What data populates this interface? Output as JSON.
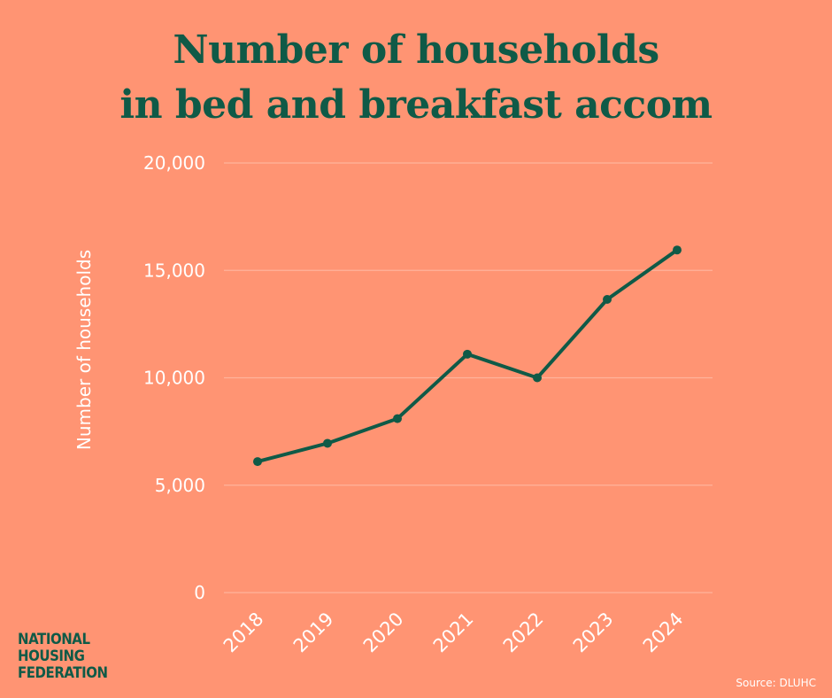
{
  "colors": {
    "background": "#FF9473",
    "accent": "#0F5A47",
    "text_light": "#FFFFFF",
    "gridline": "#FFB39B"
  },
  "title": {
    "line1": "Number of households",
    "line2": "in bed and breakfast accom"
  },
  "logo": {
    "line1": "NATIONAL",
    "line2": "HOUSING",
    "line3": "FEDERATION"
  },
  "source": "Source: DLUHC",
  "chart_data": {
    "type": "line",
    "x": [
      "2018",
      "2019",
      "2020",
      "2021",
      "2022",
      "2023",
      "2024"
    ],
    "series": [
      {
        "values": [
          6100,
          6950,
          8100,
          11100,
          10000,
          13650,
          15950
        ]
      }
    ],
    "ylabel": "Number of households",
    "xlabel": "",
    "ylim": [
      0,
      20000
    ],
    "yticks": [
      0,
      5000,
      10000,
      15000,
      20000
    ],
    "ytick_labels": [
      "0",
      "5,000",
      "10,000",
      "15,000",
      "20,000"
    ],
    "grid": true,
    "legend": "none"
  }
}
